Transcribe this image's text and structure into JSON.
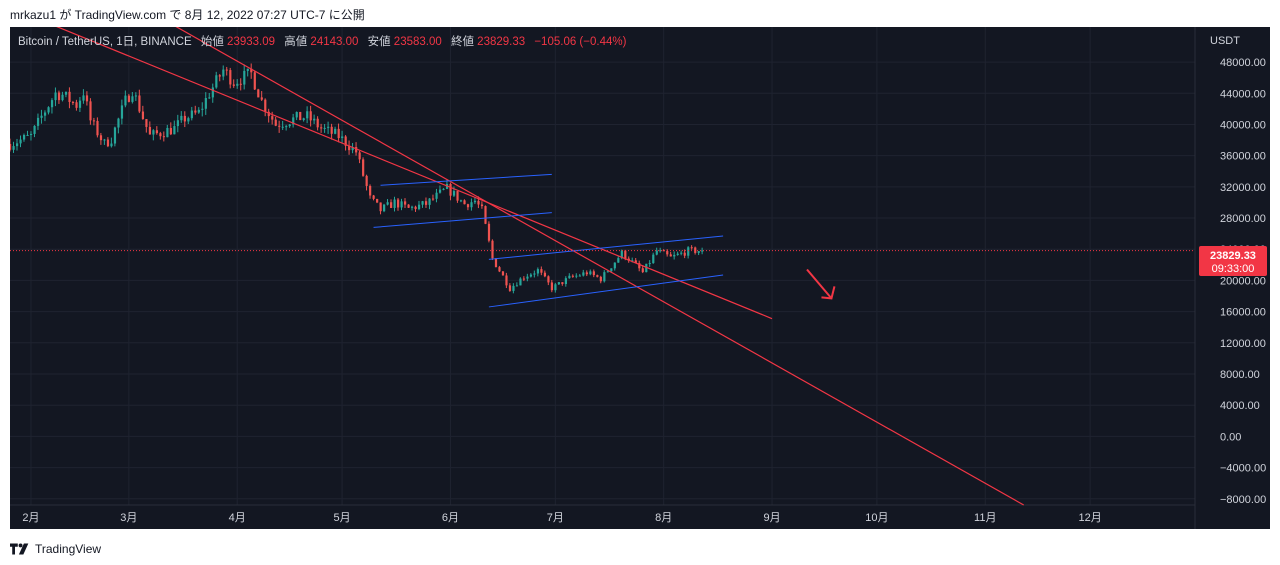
{
  "header": {
    "publish_line": "mrkazu1 が TradingView.com で 8月 12, 2022 07:27 UTC-7 に公開"
  },
  "legend": {
    "symbol": "Bitcoin / TetherUS, 1日, BINANCE",
    "open_label": "始値",
    "open": "23933.09",
    "high_label": "高値",
    "high": "24143.00",
    "low_label": "安値",
    "low": "23583.00",
    "close_label": "終値",
    "close": "23829.33",
    "change": "−105.06 (−0.44%)"
  },
  "price_axis": {
    "currency": "USDT",
    "current_price": "23829.33",
    "countdown": "09:33:00"
  },
  "footer": {
    "brand": "TradingView",
    "logo_icon": "tradingview-logo-icon"
  },
  "colors": {
    "background": "#131722",
    "up_candle": "#26a69a",
    "down_candle": "#ef5350",
    "trendline": "#f23645",
    "channel": "#2962ff",
    "price_label_bg": "#f23645"
  },
  "chart_data": {
    "type": "candlestick",
    "interval": "1日",
    "exchange": "BINANCE",
    "y_axis": {
      "ticks": [
        "48000.00",
        "44000.00",
        "40000.00",
        "36000.00",
        "32000.00",
        "28000.00",
        "24000.00",
        "20000.00",
        "16000.00",
        "12000.00",
        "8000.00",
        "4000.00",
        "0.00",
        "−4000.00",
        "−8000.00"
      ],
      "range": [
        -8800,
        52500
      ]
    },
    "x_axis": {
      "ticks": [
        "2月",
        "3月",
        "4月",
        "5月",
        "6月",
        "7月",
        "8月",
        "9月",
        "10月",
        "11月",
        "12月"
      ],
      "range": [
        "2022-01-26",
        "2022-12-31"
      ]
    },
    "grid": true,
    "price_path": [
      [
        "2022-01-26",
        37500
      ],
      [
        "2022-02-01",
        38500
      ],
      [
        "2022-02-04",
        41000
      ],
      [
        "2022-02-08",
        44000
      ],
      [
        "2022-02-10",
        43800
      ],
      [
        "2022-02-14",
        42500
      ],
      [
        "2022-02-16",
        44200
      ],
      [
        "2022-02-18",
        40500
      ],
      [
        "2022-02-22",
        37500
      ],
      [
        "2022-02-24",
        38200
      ],
      [
        "2022-02-28",
        43000
      ],
      [
        "2022-03-02",
        44500
      ],
      [
        "2022-03-07",
        38500
      ],
      [
        "2022-03-14",
        39500
      ],
      [
        "2022-03-17",
        40800
      ],
      [
        "2022-03-21",
        41500
      ],
      [
        "2022-03-24",
        44000
      ],
      [
        "2022-03-28",
        47000
      ],
      [
        "2022-03-31",
        45500
      ],
      [
        "2022-04-05",
        46500
      ],
      [
        "2022-04-08",
        43000
      ],
      [
        "2022-04-12",
        40000
      ],
      [
        "2022-04-18",
        40800
      ],
      [
        "2022-04-21",
        41000
      ],
      [
        "2022-04-25",
        39500
      ],
      [
        "2022-04-30",
        38500
      ],
      [
        "2022-05-05",
        36500
      ],
      [
        "2022-05-09",
        30500
      ],
      [
        "2022-05-12",
        29000
      ],
      [
        "2022-05-16",
        30000
      ],
      [
        "2022-05-20",
        29200
      ],
      [
        "2022-05-25",
        29800
      ],
      [
        "2022-05-31",
        31800
      ],
      [
        "2022-06-05",
        29800
      ],
      [
        "2022-06-08",
        30200
      ],
      [
        "2022-06-10",
        29000
      ],
      [
        "2022-06-13",
        22800
      ],
      [
        "2022-06-18",
        19000
      ],
      [
        "2022-06-22",
        20500
      ],
      [
        "2022-06-26",
        21300
      ],
      [
        "2022-06-30",
        19000
      ],
      [
        "2022-07-05",
        20300
      ],
      [
        "2022-07-10",
        21000
      ],
      [
        "2022-07-14",
        20200
      ],
      [
        "2022-07-20",
        23500
      ],
      [
        "2022-07-22",
        22800
      ],
      [
        "2022-07-26",
        21000
      ],
      [
        "2022-07-30",
        23800
      ],
      [
        "2022-08-03",
        22900
      ],
      [
        "2022-08-08",
        23800
      ],
      [
        "2022-08-12",
        23829
      ]
    ],
    "drawings": {
      "trendline_1": [
        [
          "2022-01-26",
          55000
        ],
        [
          "2022-09-01",
          15100
        ]
      ],
      "trendline_2": [
        [
          "2022-02-17",
          59000
        ],
        [
          "2022-11-12",
          -8800
        ]
      ],
      "channel_1": {
        "upper": [
          [
            "2022-05-12",
            32200
          ],
          [
            "2022-06-30",
            33600
          ]
        ],
        "lower": [
          [
            "2022-05-10",
            26800
          ],
          [
            "2022-06-30",
            28700
          ]
        ]
      },
      "channel_2": {
        "upper": [
          [
            "2022-06-12",
            22700
          ],
          [
            "2022-08-18",
            25700
          ]
        ],
        "lower": [
          [
            "2022-06-12",
            16600
          ],
          [
            "2022-08-18",
            20700
          ]
        ]
      },
      "arrow": [
        [
          "2022-09-11",
          21400
        ],
        [
          "2022-09-18",
          17700
        ]
      ]
    }
  }
}
